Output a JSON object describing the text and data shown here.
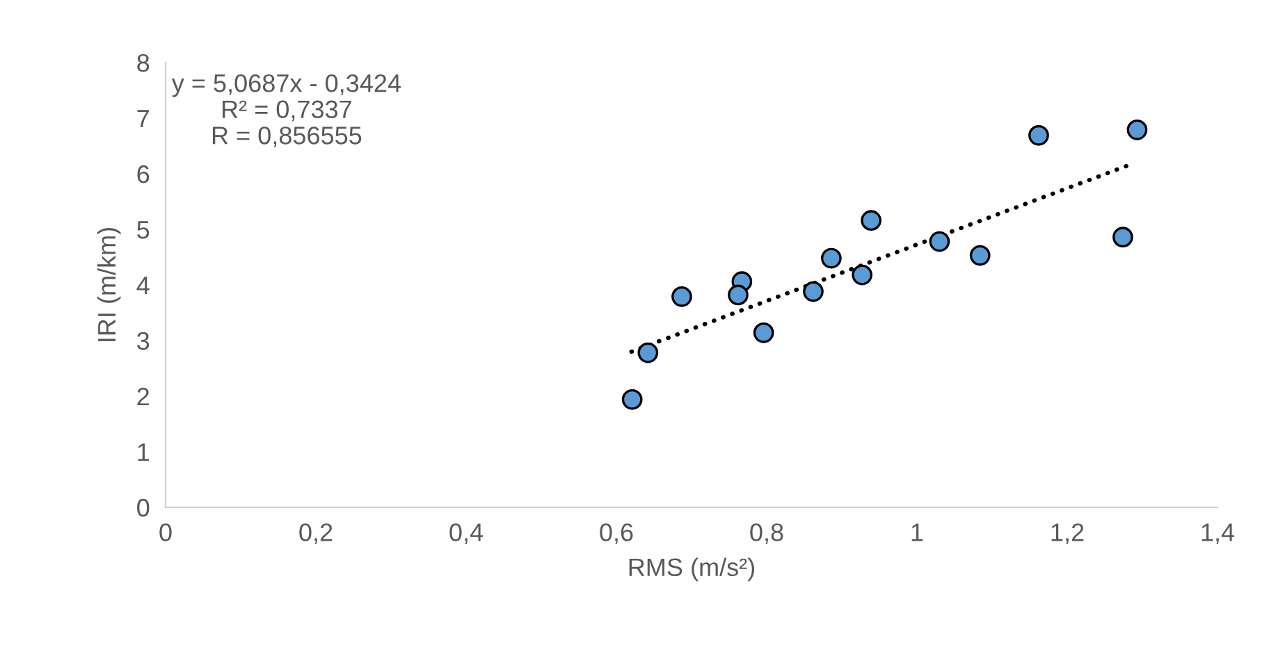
{
  "chart_data": {
    "type": "scatter",
    "xlabel": "RMS (m/s²)",
    "ylabel": "IRI (m/km)",
    "xlim": [
      0,
      1.4
    ],
    "xticks": [
      {
        "value": 0,
        "label": "0"
      },
      {
        "value": 0.2,
        "label": "0,2"
      },
      {
        "value": 0.4,
        "label": "0,4"
      },
      {
        "value": 0.6,
        "label": "0,6"
      },
      {
        "value": 0.8,
        "label": "0,8"
      },
      {
        "value": 1,
        "label": "1"
      },
      {
        "value": 1.2,
        "label": "1,2"
      },
      {
        "value": 1.4,
        "label": "1,4"
      }
    ],
    "ylim": [
      0,
      8
    ],
    "yticks": [
      0,
      1,
      2,
      3,
      4,
      5,
      6,
      7,
      8
    ],
    "grid": false,
    "legend": false,
    "series": [
      {
        "color": "#5b9bd5",
        "marker": "circle",
        "x": [
          0.621,
          0.642,
          0.687,
          0.767,
          0.762,
          0.796,
          0.862,
          0.886,
          0.927,
          0.939,
          1.03,
          1.084,
          1.162,
          1.274,
          1.293
        ],
        "values": [
          1.94,
          2.78,
          3.79,
          4.06,
          3.82,
          3.14,
          3.88,
          4.48,
          4.18,
          5.16,
          4.78,
          4.53,
          6.69,
          4.86,
          6.79
        ]
      },
      {
        "type": "line",
        "color": "#000000",
        "line_style": "dotted",
        "marker": "none",
        "x": [
          0.62,
          1.283
        ],
        "values": [
          2.8,
          6.16
        ]
      }
    ],
    "annotations": [
      "y = 5,0687x - 0,3424\nR² = 0,7337\nR = 0,856555"
    ]
  }
}
